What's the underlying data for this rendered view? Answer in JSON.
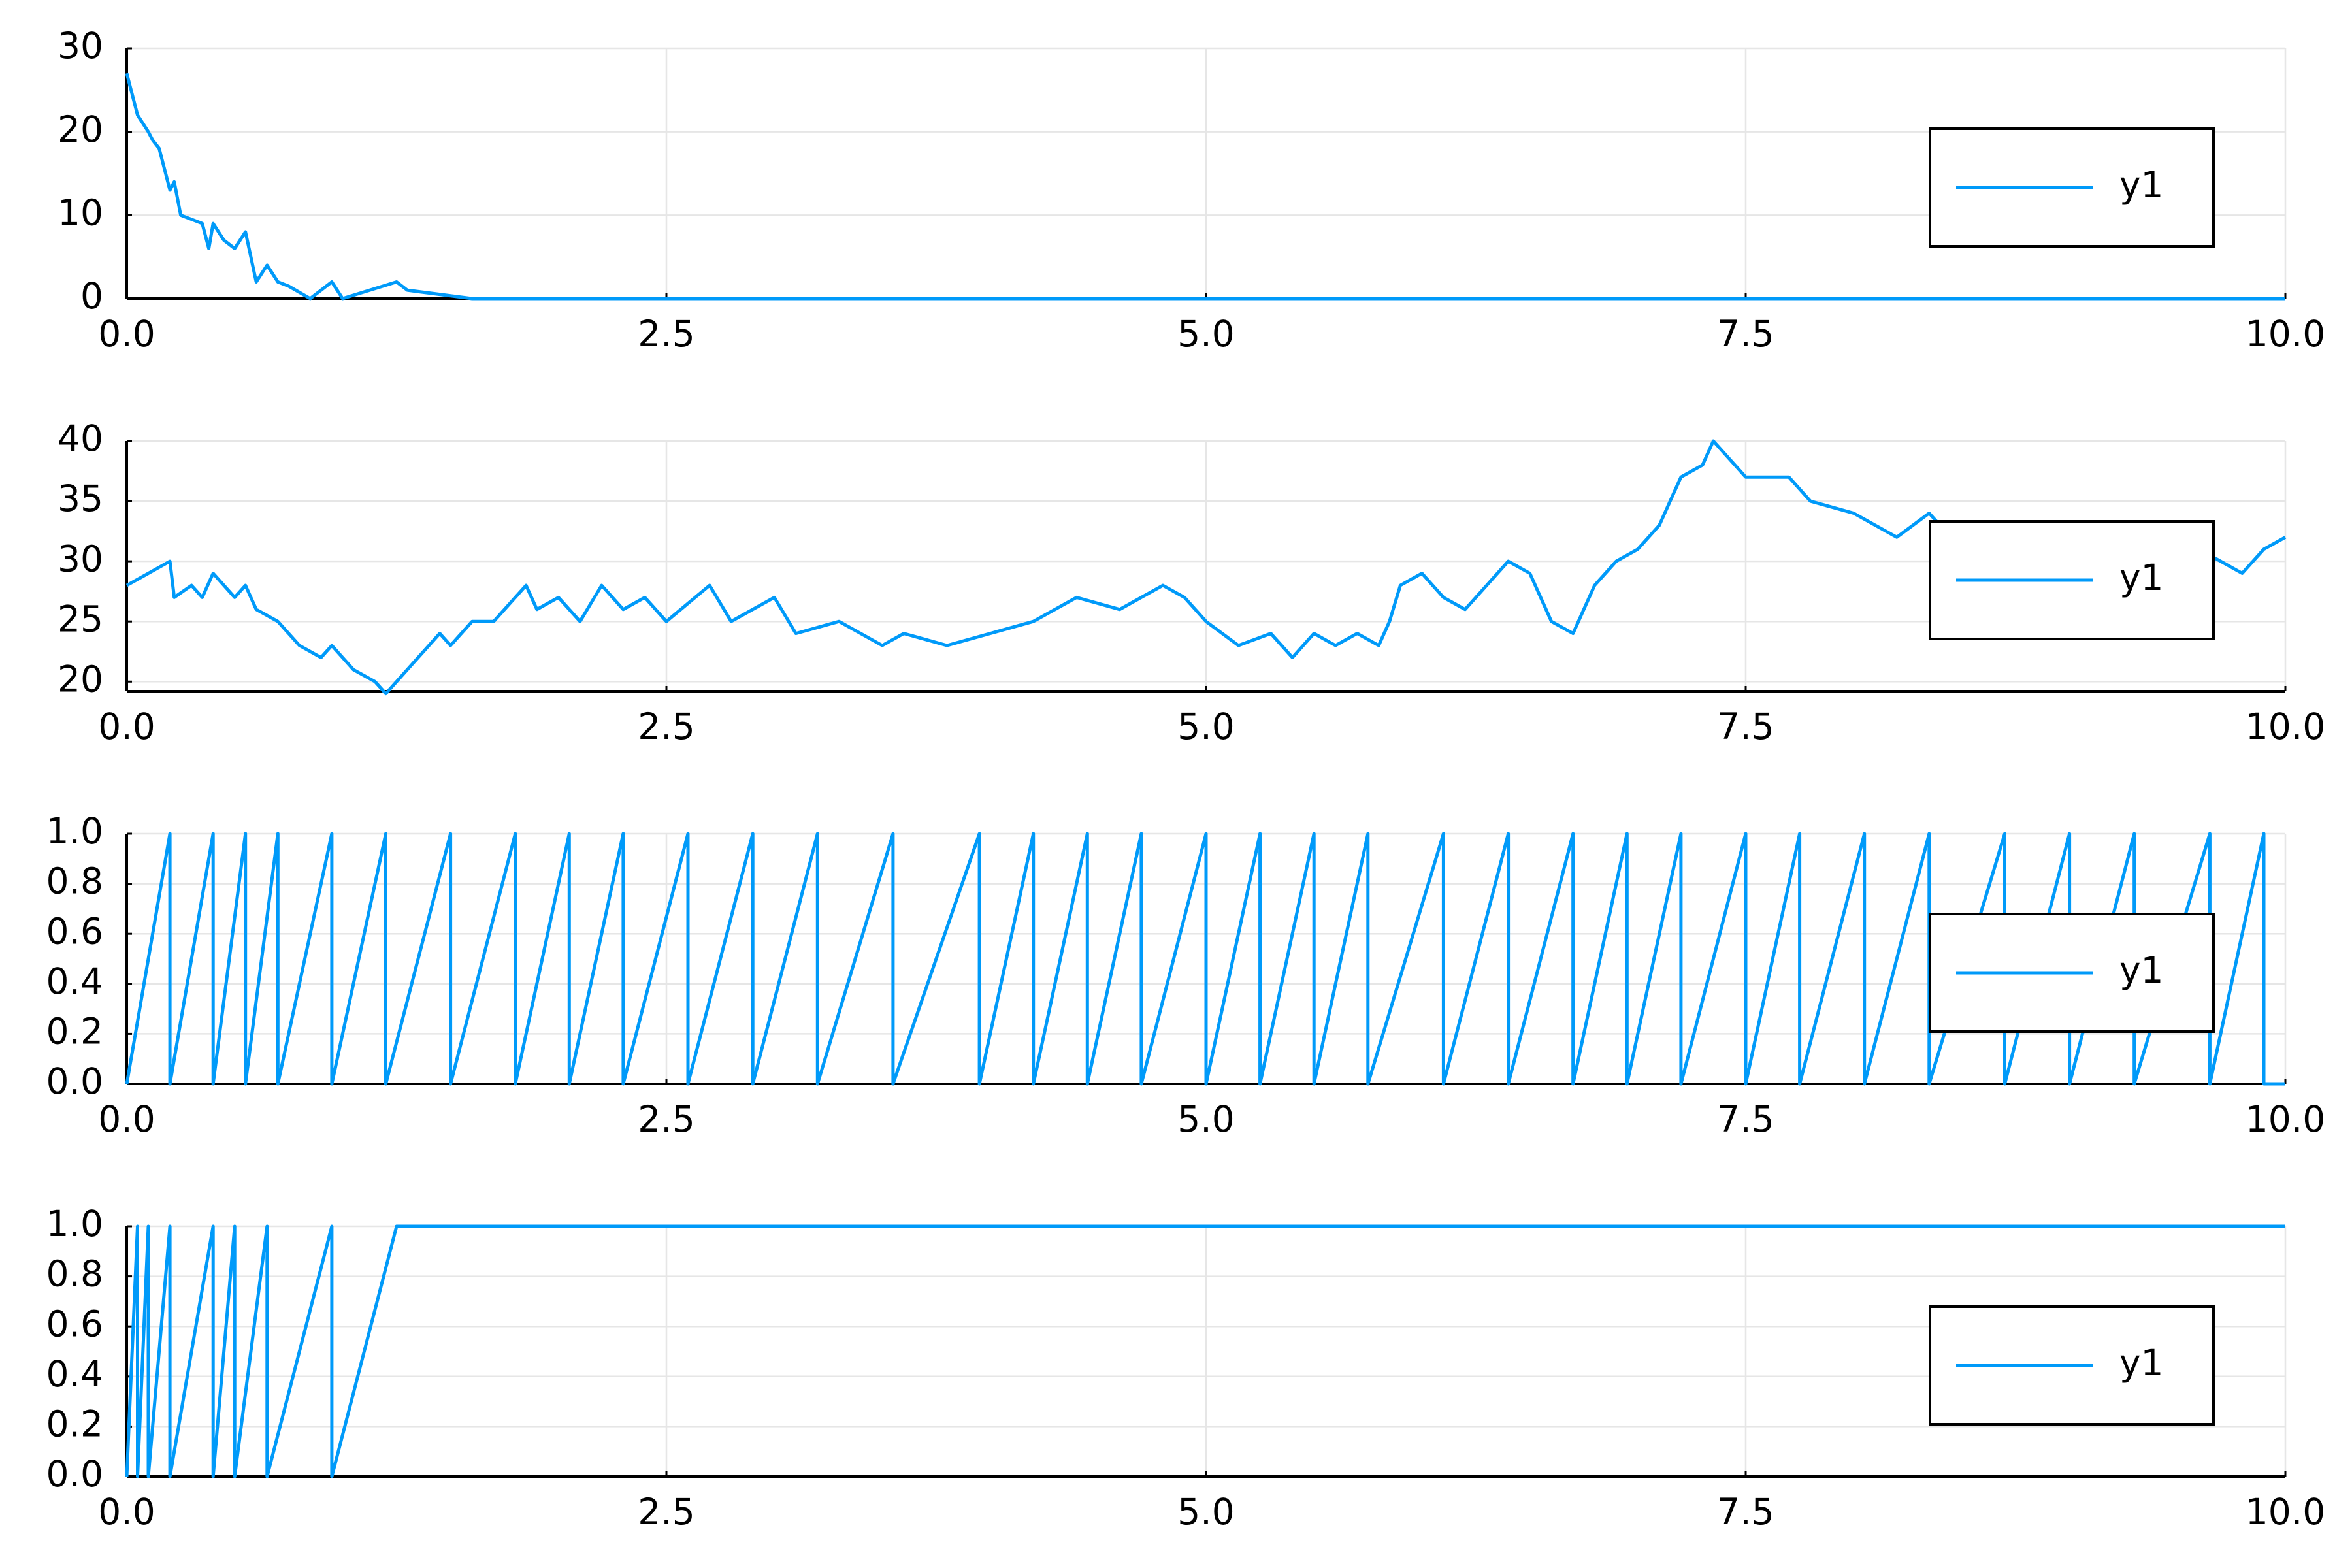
{
  "chart_data": [
    {
      "type": "line",
      "x": [
        0,
        0.05,
        0.1,
        0.12,
        0.15,
        0.2,
        0.22,
        0.25,
        0.35,
        0.38,
        0.4,
        0.45,
        0.5,
        0.55,
        0.6,
        0.65,
        0.7,
        0.75,
        0.85,
        0.95,
        1.0,
        1.25,
        1.3,
        1.6,
        10
      ],
      "series": [
        {
          "name": "y1",
          "color": "#009af9",
          "values": [
            27,
            22,
            20,
            19,
            18,
            13,
            14,
            10,
            9,
            6,
            9,
            7,
            6,
            8,
            2,
            4,
            2,
            1.5,
            0,
            2,
            0,
            2,
            1,
            0,
            0
          ]
        }
      ],
      "xlim": [
        0,
        10
      ],
      "ylim": [
        0,
        30
      ],
      "xticks": [
        {
          "value": 0,
          "label": "0.0"
        },
        2.5,
        {
          "value": 5,
          "label": "5.0"
        },
        7.5,
        {
          "value": 10,
          "label": "10.0"
        }
      ],
      "yticks": [
        0,
        10,
        20,
        30
      ],
      "grid": true,
      "legend": "right"
    },
    {
      "type": "line",
      "x": [
        0,
        0.2,
        0.22,
        0.3,
        0.35,
        0.4,
        0.5,
        0.55,
        0.6,
        0.7,
        0.8,
        0.9,
        0.95,
        1.05,
        1.15,
        1.2,
        1.25,
        1.35,
        1.45,
        1.5,
        1.6,
        1.7,
        1.8,
        1.85,
        1.9,
        2.0,
        2.1,
        2.2,
        2.3,
        2.4,
        2.5,
        2.7,
        2.8,
        3.0,
        3.1,
        3.3,
        3.5,
        3.6,
        3.8,
        4.0,
        4.2,
        4.4,
        4.6,
        4.8,
        4.9,
        5.0,
        5.15,
        5.3,
        5.4,
        5.5,
        5.6,
        5.7,
        5.8,
        5.85,
        5.9,
        6.0,
        6.1,
        6.2,
        6.3,
        6.4,
        6.5,
        6.6,
        6.7,
        6.8,
        6.9,
        7.0,
        7.1,
        7.2,
        7.3,
        7.35,
        7.5,
        7.7,
        7.8,
        8.0,
        8.2,
        8.35,
        8.5,
        8.7,
        8.9,
        9.1,
        9.3,
        9.5,
        9.7,
        9.8,
        9.9,
        10.0
      ],
      "series": [
        {
          "name": "y1",
          "color": "#009af9",
          "values": [
            28,
            30,
            27,
            28,
            27,
            29,
            27,
            28,
            26,
            25,
            23,
            22,
            23,
            21,
            20,
            19,
            20,
            22,
            24,
            23,
            25,
            25,
            27,
            28,
            26,
            27,
            25,
            28,
            26,
            27,
            25,
            28,
            25,
            27,
            24,
            25,
            23,
            24,
            23,
            24,
            25,
            27,
            26,
            28,
            27,
            25,
            23,
            24,
            22,
            24,
            23,
            24,
            23,
            25,
            28,
            29,
            27,
            26,
            28,
            30,
            29,
            25,
            24,
            28,
            30,
            31,
            33,
            37,
            38,
            40,
            37,
            37,
            35,
            34,
            32,
            34,
            31,
            33,
            32,
            33,
            30,
            32,
            30,
            29,
            31,
            32
          ]
        }
      ],
      "xlim": [
        0,
        10
      ],
      "ylim": [
        19.2,
        40
      ],
      "xticks": [
        {
          "value": 0,
          "label": "0.0"
        },
        2.5,
        {
          "value": 5,
          "label": "5.0"
        },
        7.5,
        {
          "value": 10,
          "label": "10.0"
        }
      ],
      "yticks": [
        20,
        25,
        30,
        35,
        40
      ],
      "grid": true,
      "legend": "right"
    },
    {
      "type": "line",
      "x": [
        0,
        0.2,
        0.2,
        0.4,
        0.4,
        0.55,
        0.55,
        0.7,
        0.7,
        0.95,
        0.95,
        1.2,
        1.2,
        1.5,
        1.5,
        1.8,
        1.8,
        2.05,
        2.05,
        2.3,
        2.3,
        2.6,
        2.6,
        2.9,
        2.9,
        3.2,
        3.2,
        3.55,
        3.55,
        3.95,
        3.95,
        4.2,
        4.2,
        4.45,
        4.45,
        4.7,
        4.7,
        5.0,
        5.0,
        5.25,
        5.25,
        5.5,
        5.5,
        5.75,
        5.75,
        6.1,
        6.1,
        6.4,
        6.4,
        6.7,
        6.7,
        6.95,
        6.95,
        7.2,
        7.2,
        7.5,
        7.5,
        7.75,
        7.75,
        8.05,
        8.05,
        8.35,
        8.35,
        8.7,
        8.7,
        9.0,
        9.0,
        9.3,
        9.3,
        9.65,
        9.65,
        9.9,
        9.9,
        10.0
      ],
      "series": [
        {
          "name": "y1",
          "color": "#009af9",
          "values": [
            0,
            1,
            0,
            1,
            0,
            1,
            0,
            1,
            0,
            1,
            0,
            1,
            0,
            1,
            0,
            1,
            0,
            1,
            0,
            1,
            0,
            1,
            0,
            1,
            0,
            1,
            0,
            1,
            0,
            1,
            0,
            1,
            0,
            1,
            0,
            1,
            0,
            1,
            0,
            1,
            0,
            1,
            0,
            1,
            0,
            1,
            0,
            1,
            0,
            1,
            0,
            1,
            0,
            1,
            0,
            1,
            0,
            1,
            0,
            1,
            0,
            1,
            0,
            1,
            0,
            1,
            0,
            1,
            0,
            1,
            0,
            1,
            0,
            0
          ]
        }
      ],
      "xlim": [
        0,
        10
      ],
      "ylim": [
        0,
        1
      ],
      "xticks": [
        {
          "value": 0,
          "label": "0.0"
        },
        2.5,
        {
          "value": 5,
          "label": "5.0"
        },
        7.5,
        {
          "value": 10,
          "label": "10.0"
        }
      ],
      "yticks": [
        {
          "value": 0,
          "label": "0.0"
        },
        0.2,
        0.4,
        0.6,
        0.8,
        {
          "value": 1,
          "label": "1.0"
        }
      ],
      "grid": true,
      "legend": "right"
    },
    {
      "type": "line",
      "x": [
        0,
        0.05,
        0.05,
        0.1,
        0.1,
        0.2,
        0.2,
        0.4,
        0.4,
        0.5,
        0.5,
        0.65,
        0.65,
        0.95,
        0.95,
        1.25,
        10
      ],
      "series": [
        {
          "name": "y1",
          "color": "#009af9",
          "values": [
            0,
            1,
            0,
            1,
            0,
            1,
            0,
            1,
            0,
            1,
            0,
            1,
            0,
            1,
            0,
            1,
            1
          ]
        }
      ],
      "xlim": [
        0,
        10
      ],
      "ylim": [
        0,
        1
      ],
      "xticks": [
        {
          "value": 0,
          "label": "0.0"
        },
        2.5,
        {
          "value": 5,
          "label": "5.0"
        },
        7.5,
        {
          "value": 10,
          "label": "10.0"
        }
      ],
      "yticks": [
        {
          "value": 0,
          "label": "0.0"
        },
        0.2,
        0.4,
        0.6,
        0.8,
        {
          "value": 1,
          "label": "1.0"
        }
      ],
      "grid": true,
      "legend": "right"
    }
  ]
}
